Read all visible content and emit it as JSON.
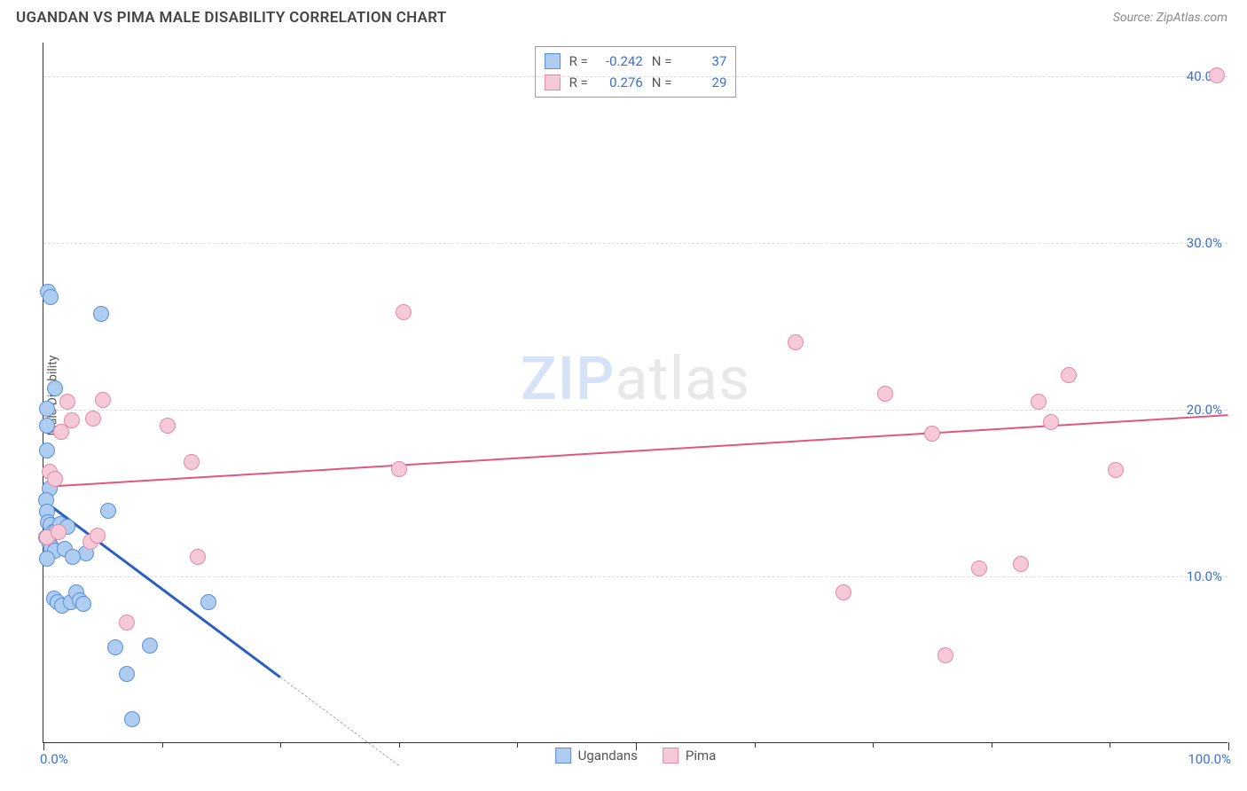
{
  "header": {
    "title": "UGANDAN VS PIMA MALE DISABILITY CORRELATION CHART",
    "source": "Source: ZipAtlas.com"
  },
  "chart": {
    "type": "scatter",
    "y_axis_label": "Male Disability",
    "watermark": {
      "strong": "ZIP",
      "light": "atlas"
    },
    "xlim": [
      0,
      100
    ],
    "ylim": [
      0,
      42
    ],
    "y_ticks": [
      {
        "v": 10,
        "label": "10.0%"
      },
      {
        "v": 20,
        "label": "20.0%"
      },
      {
        "v": 30,
        "label": "30.0%"
      },
      {
        "v": 40,
        "label": "40.0%"
      }
    ],
    "x_labels": {
      "min": "0.0%",
      "max": "100.0%"
    },
    "x_minor_ticks": [
      10,
      20,
      30,
      40,
      50,
      60,
      70,
      80,
      90
    ],
    "x_major_ticks": [
      0,
      50,
      100
    ],
    "grid_color": "#dddddd",
    "background_color": "#ffffff",
    "marker_radius": 9,
    "marker_border_width": 1,
    "marker_fill_opacity": 0.35,
    "series": [
      {
        "name": "Ugandans",
        "color_border": "#5a8fd8",
        "color_fill": "#aecdf0",
        "trend": {
          "x1": 0,
          "y1": 14.6,
          "x2": 20,
          "y2": 4.0,
          "color": "#2a5fc1",
          "width": 3,
          "dash_extend_x": 30
        },
        "points": [
          [
            0.3,
            19.0
          ],
          [
            0.4,
            27.0
          ],
          [
            0.6,
            26.7
          ],
          [
            1.0,
            21.2
          ],
          [
            0.3,
            20.0
          ],
          [
            0.3,
            17.5
          ],
          [
            0.5,
            15.2
          ],
          [
            0.2,
            14.5
          ],
          [
            0.3,
            13.8
          ],
          [
            0.4,
            13.2
          ],
          [
            0.6,
            13.0
          ],
          [
            0.8,
            12.6
          ],
          [
            0.2,
            12.3
          ],
          [
            0.5,
            11.9
          ],
          [
            0.7,
            11.7
          ],
          [
            1.0,
            11.5
          ],
          [
            1.8,
            11.6
          ],
          [
            0.3,
            11.0
          ],
          [
            0.9,
            8.6
          ],
          [
            1.2,
            8.4
          ],
          [
            1.6,
            8.2
          ],
          [
            2.3,
            8.4
          ],
          [
            2.8,
            9.0
          ],
          [
            3.1,
            8.5
          ],
          [
            3.4,
            8.3
          ],
          [
            1.1,
            12.7
          ],
          [
            1.4,
            13.1
          ],
          [
            2.0,
            12.9
          ],
          [
            4.9,
            25.7
          ],
          [
            5.5,
            13.9
          ],
          [
            6.1,
            5.7
          ],
          [
            7.0,
            4.1
          ],
          [
            9.0,
            5.8
          ],
          [
            13.9,
            8.4
          ],
          [
            7.5,
            1.4
          ],
          [
            3.6,
            11.3
          ],
          [
            2.5,
            11.1
          ]
        ]
      },
      {
        "name": "Pima",
        "color_border": "#e589a7",
        "color_fill": "#f5c9d7",
        "trend": {
          "x1": 0,
          "y1": 15.4,
          "x2": 100,
          "y2": 19.7,
          "color": "#e0567f",
          "width": 2
        },
        "points": [
          [
            0.5,
            16.2
          ],
          [
            1.0,
            15.8
          ],
          [
            1.5,
            18.6
          ],
          [
            2.0,
            20.4
          ],
          [
            2.4,
            19.3
          ],
          [
            4.2,
            19.4
          ],
          [
            5.0,
            20.5
          ],
          [
            4.0,
            12.0
          ],
          [
            4.6,
            12.4
          ],
          [
            7.0,
            7.2
          ],
          [
            10.5,
            19.0
          ],
          [
            12.5,
            16.8
          ],
          [
            13.0,
            11.1
          ],
          [
            30.0,
            16.4
          ],
          [
            30.4,
            25.8
          ],
          [
            63.5,
            24.0
          ],
          [
            67.5,
            9.0
          ],
          [
            71.0,
            20.9
          ],
          [
            75.0,
            18.5
          ],
          [
            76.1,
            5.2
          ],
          [
            79.0,
            10.4
          ],
          [
            82.5,
            10.7
          ],
          [
            84.0,
            20.4
          ],
          [
            85.0,
            19.2
          ],
          [
            86.5,
            22.0
          ],
          [
            90.5,
            16.3
          ],
          [
            99.0,
            40.0
          ],
          [
            0.3,
            12.3
          ],
          [
            1.3,
            12.6
          ]
        ]
      }
    ],
    "stats": [
      {
        "swatch_border": "#5a8fd8",
        "swatch_fill": "#aecdf0",
        "r": "-0.242",
        "n": "37"
      },
      {
        "swatch_border": "#e589a7",
        "swatch_fill": "#f5c9d7",
        "r": "0.276",
        "n": "29"
      }
    ],
    "stats_labels": {
      "R": "R =",
      "N": "N ="
    },
    "bottom_legend": [
      {
        "swatch_border": "#5a8fd8",
        "swatch_fill": "#aecdf0",
        "label": "Ugandans"
      },
      {
        "swatch_border": "#e589a7",
        "swatch_fill": "#f5c9d7",
        "label": "Pima"
      }
    ]
  }
}
